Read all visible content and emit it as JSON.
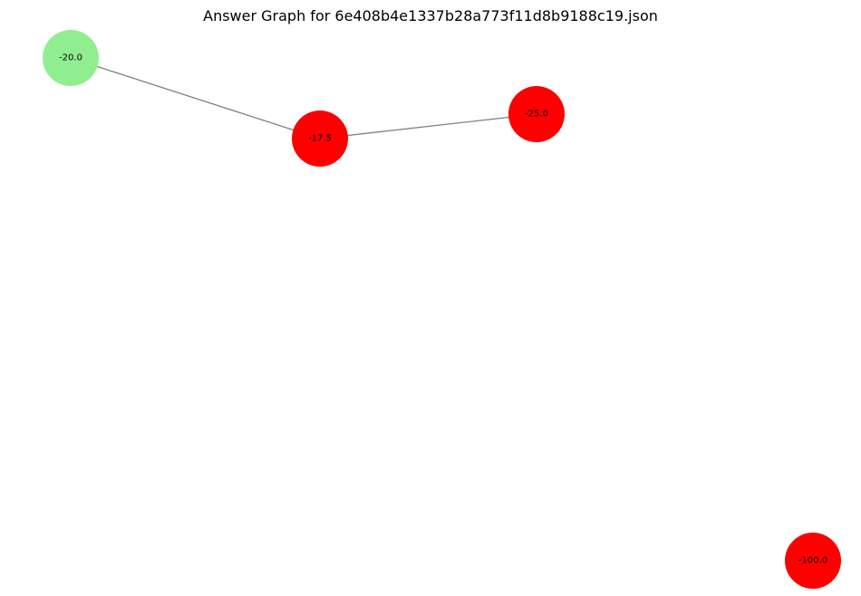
{
  "title": "Answer Graph for 6e408b4e1337b28a773f11d8b9188c19.json",
  "colors": {
    "edge": "#808080",
    "node_green": "#90ee90",
    "node_red": "#ff0000",
    "label": "#000000"
  },
  "nodes": [
    {
      "id": "n1",
      "label": "-20.0",
      "color": "green"
    },
    {
      "id": "n2",
      "label": "-17.5",
      "color": "red"
    },
    {
      "id": "n3",
      "label": "-25.0",
      "color": "red"
    },
    {
      "id": "n4",
      "label": "-100.0",
      "color": "red"
    }
  ],
  "edges": [
    {
      "source": "n1",
      "target": "n2"
    },
    {
      "source": "n2",
      "target": "n3"
    }
  ]
}
